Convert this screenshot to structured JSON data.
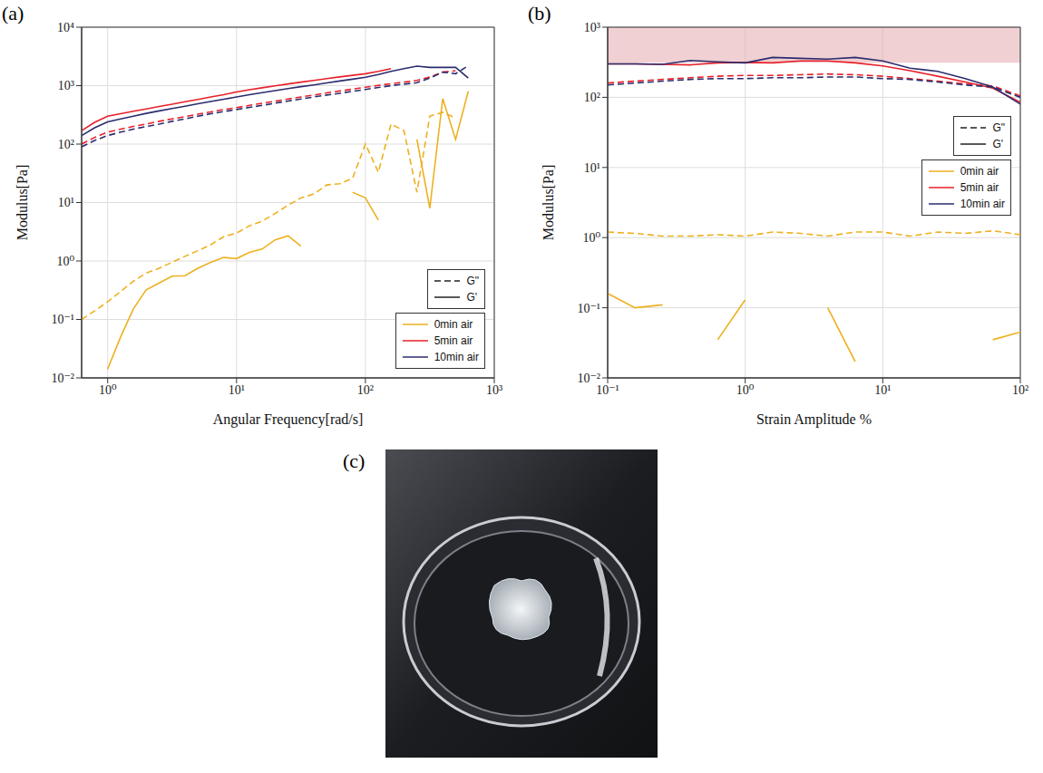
{
  "chart_data": [
    {
      "panel_label": "(a)",
      "type": "line",
      "log": true,
      "grid": true,
      "legend": "lower right",
      "x_label": "Angular Frequency[rad/s]",
      "y_label": "Modulus[Pa]",
      "xlim": [
        0.628,
        1000
      ],
      "ylim": [
        0.01,
        10000
      ],
      "xticks": [
        {
          "value": 1,
          "label": "10⁰"
        },
        {
          "value": 10,
          "label": "10¹"
        },
        {
          "value": 100,
          "label": "10²"
        },
        {
          "value": 1000,
          "label": "10³"
        }
      ],
      "yticks": [
        {
          "value": 0.01,
          "label": "10⁻²"
        },
        {
          "value": 0.1,
          "label": "10⁻¹"
        },
        {
          "value": 1,
          "label": "10⁰"
        },
        {
          "value": 10,
          "label": "10¹"
        },
        {
          "value": 100,
          "label": "10²"
        },
        {
          "value": 1000,
          "label": "10³"
        },
        {
          "value": 10000,
          "label": "10⁴"
        }
      ],
      "x": [
        0.628,
        0.792,
        0.998,
        1.26,
        1.58,
        1.99,
        2.51,
        3.16,
        3.98,
        5.01,
        6.31,
        7.95,
        10,
        12.6,
        15.8,
        19.9,
        25.1,
        31.6,
        39.8,
        50.1,
        63.1,
        79.5,
        100,
        126,
        158,
        199,
        251,
        316,
        398,
        501,
        628
      ],
      "series": [
        {
          "name": "0min air",
          "color": "#EDB120",
          "lines": [
            {
              "name": "G\"",
              "line_style": "dashed",
              "values": [
                0.1,
                0.14,
                0.2,
                0.3,
                0.45,
                0.62,
                0.75,
                0.95,
                1.2,
                1.5,
                1.9,
                2.6,
                3.0,
                4.0,
                4.8,
                6.5,
                9,
                12,
                14,
                20,
                21,
                26,
                100,
                33,
                220,
                170,
                15,
                300,
                350,
                280,
                null
              ]
            },
            {
              "name": "G'",
              "line_style": "solid",
              "values": [
                null,
                null,
                0.014,
                0.05,
                0.15,
                0.32,
                0.42,
                0.55,
                0.56,
                0.75,
                0.95,
                1.15,
                1.1,
                1.4,
                1.6,
                2.3,
                2.7,
                1.8,
                null,
                null,
                null,
                15,
                12,
                5,
                null,
                null,
                120,
                8,
                600,
                120,
                800
              ]
            }
          ]
        },
        {
          "name": "5min air",
          "color": "#E8202A",
          "lines": [
            {
              "name": "G\"",
              "line_style": "dashed",
              "values": [
                100,
                130,
                160,
                180,
                200,
                220,
                245,
                270,
                295,
                325,
                355,
                390,
                420,
                460,
                500,
                540,
                590,
                640,
                690,
                750,
                810,
                870,
                940,
                1010,
                1080,
                1150,
                1230,
                1400,
                1700,
                1800,
                null
              ]
            },
            {
              "name": "G'",
              "line_style": "solid",
              "values": [
                170,
                235,
                300,
                330,
                365,
                400,
                440,
                480,
                530,
                580,
                640,
                700,
                780,
                850,
                920,
                990,
                1070,
                1150,
                1230,
                1320,
                1410,
                1500,
                1600,
                1750,
                1950,
                null,
                null,
                null,
                null,
                null,
                null
              ]
            }
          ]
        },
        {
          "name": "10min air",
          "color": "#2B2D6E",
          "lines": [
            {
              "name": "G\"",
              "line_style": "dashed",
              "values": [
                90,
                115,
                140,
                160,
                180,
                200,
                220,
                245,
                270,
                300,
                330,
                360,
                390,
                425,
                460,
                500,
                545,
                590,
                640,
                690,
                740,
                800,
                860,
                930,
                1000,
                1060,
                1120,
                1350,
                1700,
                1600,
                2200
              ]
            },
            {
              "name": "G'",
              "line_style": "solid",
              "values": [
                140,
                190,
                240,
                270,
                300,
                335,
                370,
                405,
                445,
                490,
                535,
                585,
                640,
                700,
                760,
                820,
                890,
                960,
                1030,
                1110,
                1200,
                1290,
                1390,
                1550,
                1750,
                1950,
                2150,
                2050,
                2050,
                2050,
                1350
              ]
            }
          ]
        }
      ]
    },
    {
      "panel_label": "(b)",
      "type": "line",
      "log": true,
      "grid": true,
      "legend": "center right",
      "x_label": "Strain Amplitude %",
      "y_label": "Modulus[Pa]",
      "xlim": [
        0.1,
        100
      ],
      "ylim": [
        0.01,
        1000
      ],
      "xticks": [
        {
          "value": 0.1,
          "label": "10⁻¹"
        },
        {
          "value": 1,
          "label": "10⁰"
        },
        {
          "value": 10,
          "label": "10¹"
        },
        {
          "value": 100,
          "label": "10²"
        }
      ],
      "yticks": [
        {
          "value": 0.01,
          "label": "10⁻²"
        },
        {
          "value": 0.1,
          "label": "10⁻¹"
        },
        {
          "value": 1,
          "label": "10⁰"
        },
        {
          "value": 10,
          "label": "10¹"
        },
        {
          "value": 100,
          "label": "10²"
        },
        {
          "value": 1000,
          "label": "10³"
        }
      ],
      "shaded_region": {
        "ylim": [
          310,
          1000
        ],
        "color": "#E3A9AE"
      },
      "x": [
        0.1,
        0.158,
        0.251,
        0.398,
        0.631,
        1,
        1.58,
        2.51,
        3.98,
        6.31,
        10,
        15.8,
        25.1,
        39.8,
        63.1,
        100
      ],
      "series": [
        {
          "name": "0min air",
          "color": "#EDB120",
          "lines": [
            {
              "name": "G\"",
              "line_style": "dashed",
              "values": [
                1.2,
                1.15,
                1.05,
                1.05,
                1.1,
                1.05,
                1.2,
                1.15,
                1.05,
                1.2,
                1.2,
                1.05,
                1.2,
                1.15,
                1.25,
                1.1
              ]
            },
            {
              "name": "G'",
              "line_style": "solid",
              "values": [
                0.16,
                0.1,
                0.11,
                null,
                0.035,
                0.13,
                null,
                null,
                0.1,
                0.017,
                null,
                null,
                null,
                null,
                0.035,
                0.045
              ]
            }
          ]
        },
        {
          "name": "5min air",
          "color": "#E8202A",
          "lines": [
            {
              "name": "G\"",
              "line_style": "dashed",
              "values": [
                160,
                170,
                180,
                190,
                200,
                205,
                205,
                210,
                215,
                210,
                200,
                185,
                170,
                155,
                145,
                105
              ]
            },
            {
              "name": "G'",
              "line_style": "solid",
              "values": [
                300,
                300,
                295,
                290,
                310,
                315,
                310,
                330,
                330,
                310,
                280,
                240,
                200,
                165,
                135,
                85
              ]
            }
          ]
        },
        {
          "name": "10min air",
          "color": "#2B2D6E",
          "lines": [
            {
              "name": "G\"",
              "line_style": "dashed",
              "values": [
                150,
                160,
                170,
                180,
                185,
                185,
                190,
                190,
                195,
                195,
                185,
                180,
                165,
                150,
                140,
                100
              ]
            },
            {
              "name": "G'",
              "line_style": "solid",
              "values": [
                300,
                300,
                295,
                335,
                320,
                310,
                370,
                360,
                350,
                370,
                330,
                260,
                235,
                185,
                140,
                80
              ]
            }
          ]
        }
      ]
    }
  ],
  "image": {
    "panel_label": "(c)"
  }
}
